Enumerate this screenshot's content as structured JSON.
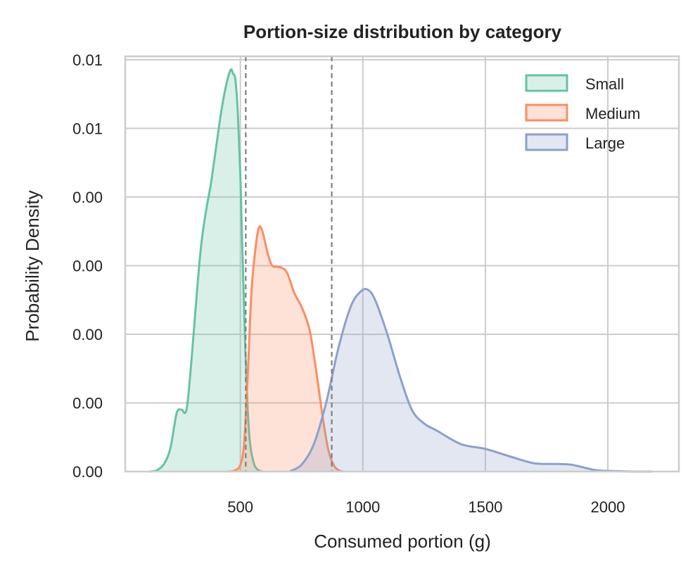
{
  "chart_data": {
    "type": "area",
    "title": "Portion-size distribution by category",
    "xlabel": "Consumed portion (g)",
    "ylabel": "Probability Density",
    "xlim": [
      30,
      2290
    ],
    "ylim": [
      0,
      0.00605
    ],
    "x_ticks": [
      500,
      1000,
      1500,
      2000
    ],
    "x_tick_labels": [
      "500",
      "1000",
      "1500",
      "2000"
    ],
    "y_ticks": [
      0,
      0.001,
      0.002,
      0.003,
      0.004,
      0.005,
      0.006
    ],
    "y_tick_labels": [
      "0.00",
      "0.00",
      "0.00",
      "0.00",
      "0.00",
      "0.01",
      "0.01"
    ],
    "grid": true,
    "legend_position": "top-right",
    "reference_lines_x": [
      522,
      873
    ],
    "series": [
      {
        "name": "Small",
        "color": "#66c2a5",
        "x": [
          130,
          160,
          190,
          215,
          240,
          260,
          280,
          300,
          320,
          340,
          360,
          380,
          400,
          420,
          440,
          460,
          470,
          480,
          490,
          500,
          510,
          520,
          530,
          540,
          555,
          570,
          590
        ],
        "y": [
          0,
          2e-05,
          0.00012,
          0.00035,
          0.00085,
          0.0009,
          0.0009,
          0.0016,
          0.0025,
          0.0033,
          0.0038,
          0.0042,
          0.0047,
          0.0052,
          0.0056,
          0.00585,
          0.0058,
          0.0057,
          0.0052,
          0.0043,
          0.003,
          0.0018,
          0.0009,
          0.0004,
          0.00012,
          3e-05,
          0
        ]
      },
      {
        "name": "Medium",
        "color": "#fc8d62",
        "x": [
          450,
          480,
          500,
          515,
          530,
          545,
          560,
          575,
          590,
          610,
          630,
          660,
          690,
          720,
          750,
          780,
          800,
          820,
          840,
          860,
          880,
          900,
          920
        ],
        "y": [
          0,
          2e-05,
          0.0001,
          0.0004,
          0.0014,
          0.0026,
          0.0032,
          0.00355,
          0.0035,
          0.0032,
          0.003,
          0.00298,
          0.0029,
          0.0026,
          0.0024,
          0.0021,
          0.0017,
          0.0012,
          0.0007,
          0.0003,
          0.0001,
          2e-05,
          0
        ]
      },
      {
        "name": "Large",
        "color": "#8da0cb",
        "x": [
          700,
          750,
          800,
          850,
          900,
          950,
          990,
          1020,
          1050,
          1100,
          1150,
          1200,
          1250,
          1300,
          1400,
          1500,
          1600,
          1700,
          1800,
          1850,
          1900,
          1950,
          2000,
          2100,
          2180
        ],
        "y": [
          0,
          0.0001,
          0.0004,
          0.001,
          0.0018,
          0.0024,
          0.00262,
          0.00265,
          0.0025,
          0.002,
          0.0014,
          0.0009,
          0.0007,
          0.0006,
          0.0004,
          0.00033,
          0.00022,
          0.00012,
          0.00011,
          0.0001,
          6e-05,
          2e-05,
          1e-05,
          0,
          0
        ]
      }
    ]
  }
}
